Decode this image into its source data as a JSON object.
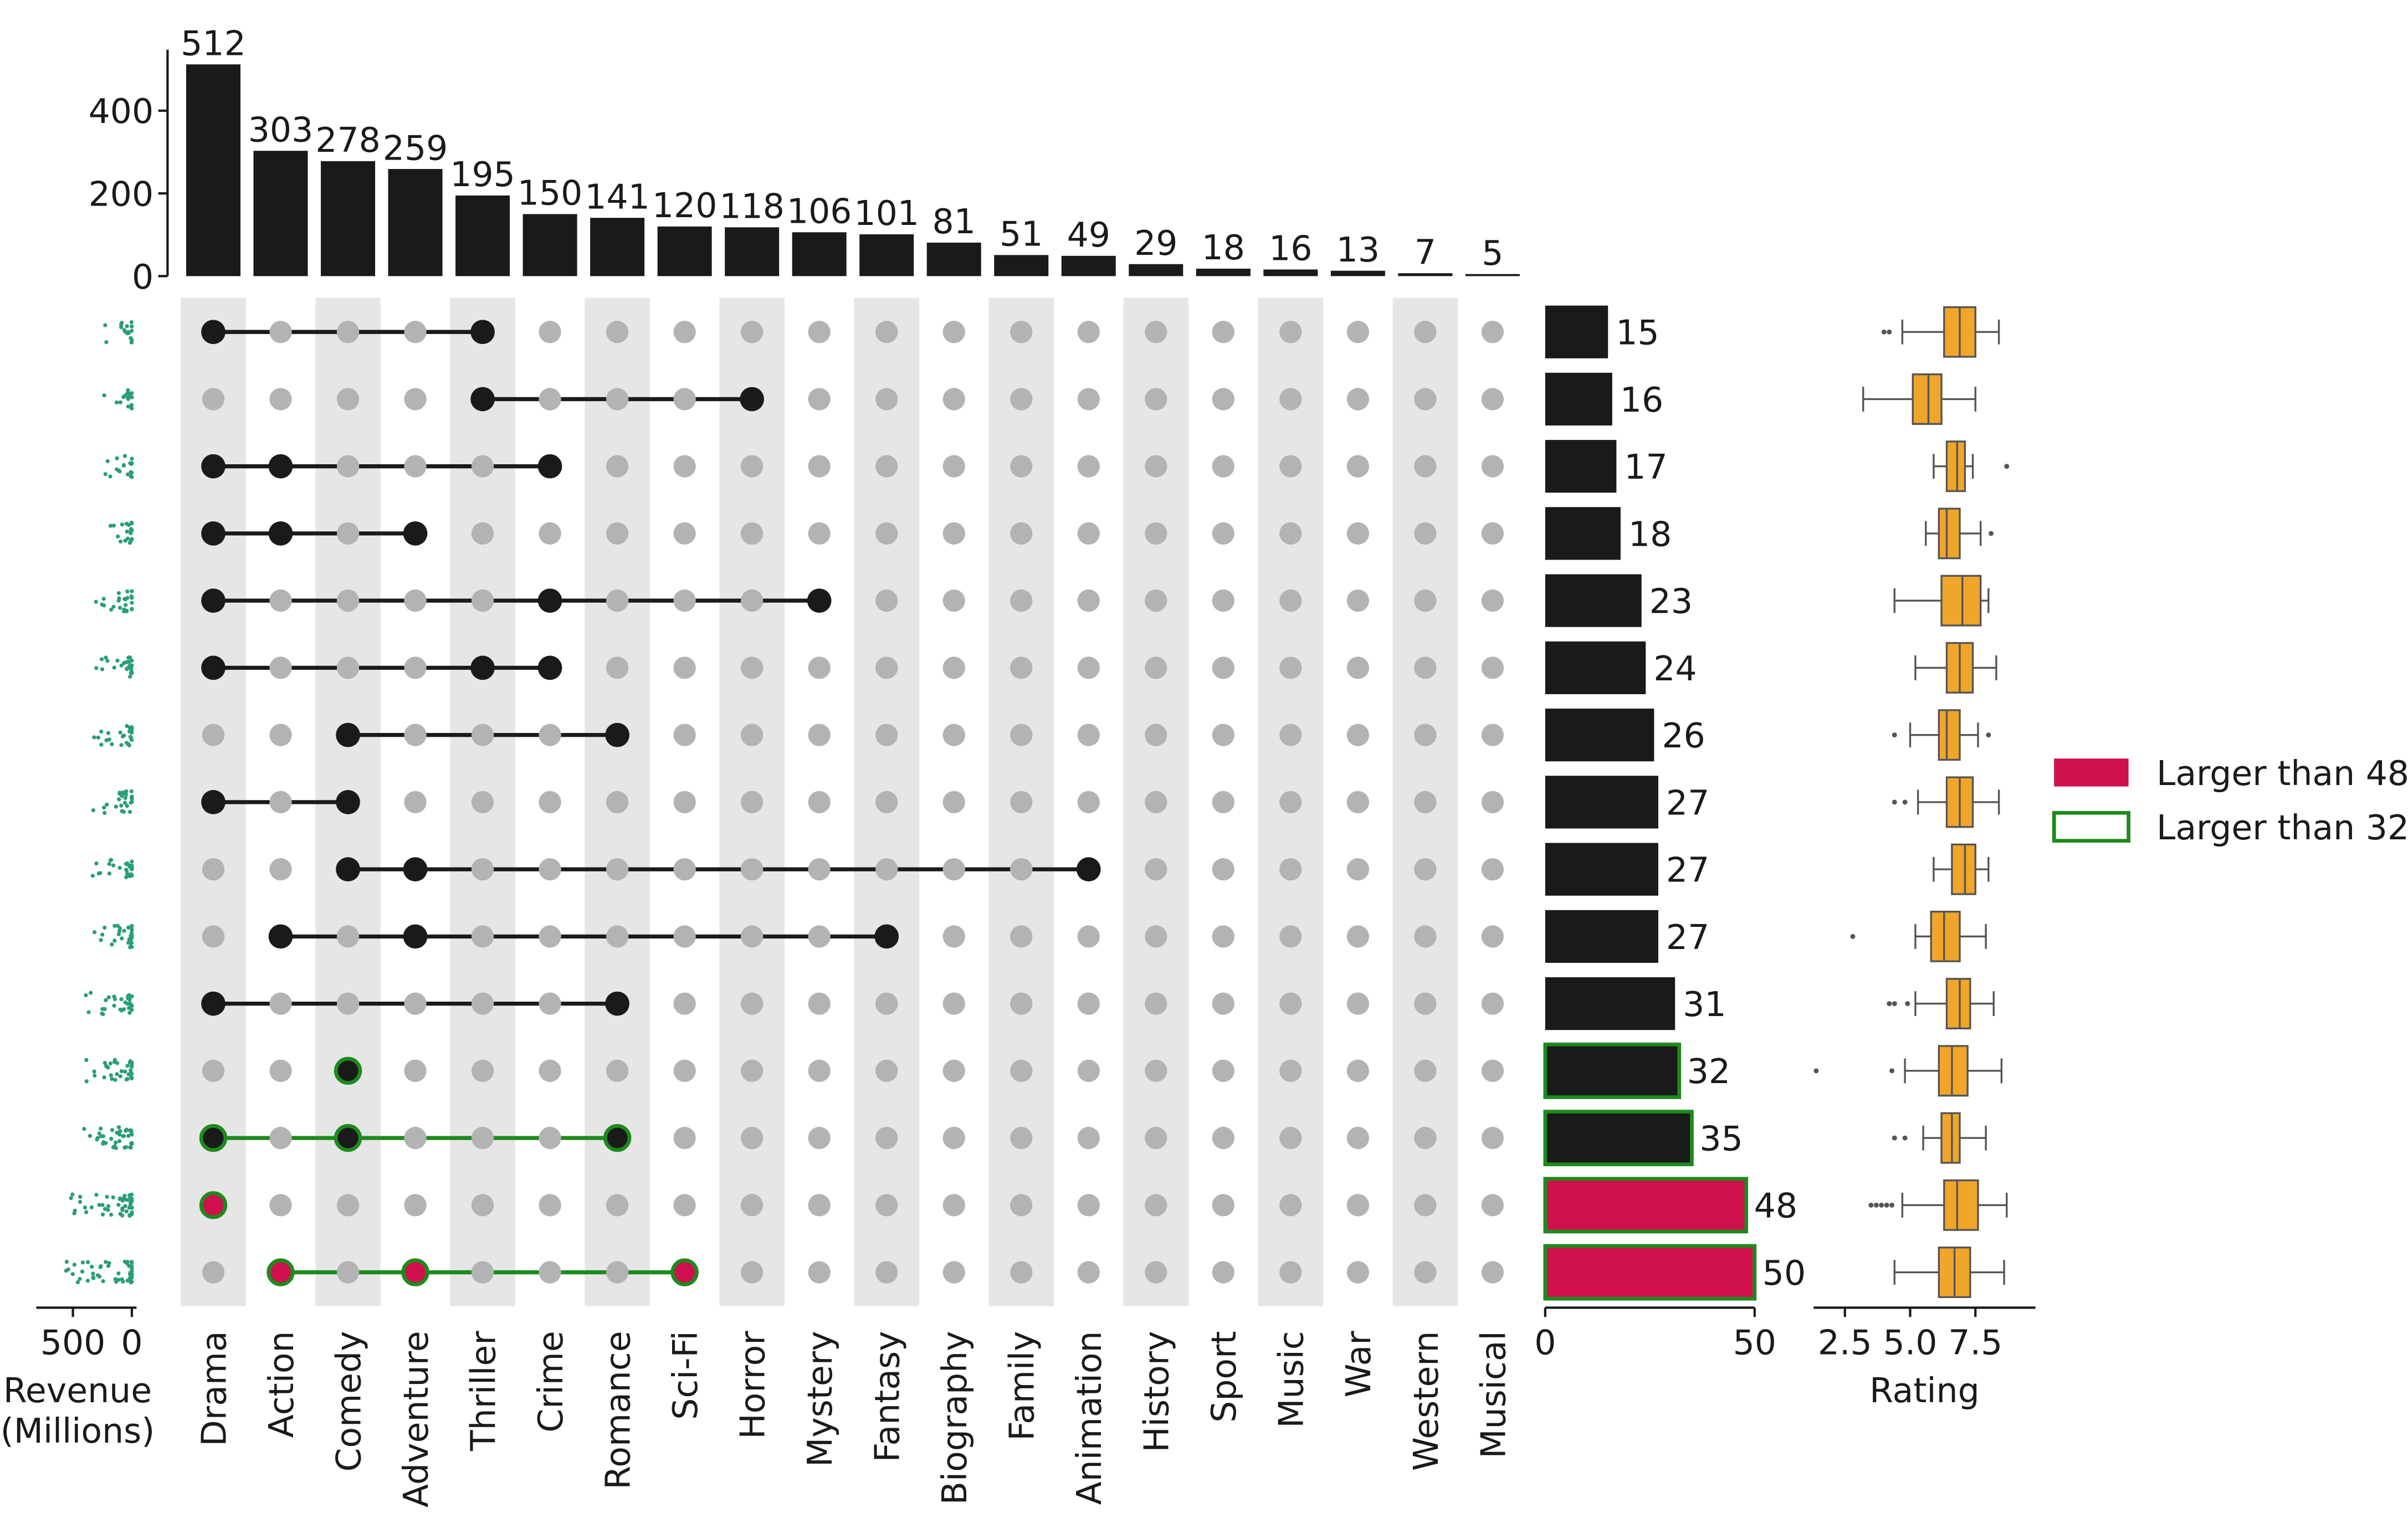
{
  "chart_data": {
    "type": "bar",
    "subtype": "upset-plot",
    "categories": [
      "Drama",
      "Action",
      "Comedy",
      "Adventure",
      "Thriller",
      "Crime",
      "Romance",
      "Sci-Fi",
      "Horror",
      "Mystery",
      "Fantasy",
      "Biography",
      "Family",
      "Animation",
      "History",
      "Sport",
      "Music",
      "War",
      "Western",
      "Musical"
    ],
    "category_totals": [
      512,
      303,
      278,
      259,
      195,
      150,
      141,
      120,
      118,
      106,
      101,
      81,
      51,
      49,
      29,
      18,
      16,
      13,
      7,
      5
    ],
    "category_totals_ticks": [
      0,
      200,
      400
    ],
    "category_totals_ylim": [
      0,
      512
    ],
    "intersections": [
      {
        "members": [
          "Drama",
          "Thriller"
        ],
        "size": 15
      },
      {
        "members": [
          "Thriller",
          "Horror"
        ],
        "size": 16
      },
      {
        "members": [
          "Drama",
          "Action",
          "Crime"
        ],
        "size": 17
      },
      {
        "members": [
          "Drama",
          "Action",
          "Adventure"
        ],
        "size": 18
      },
      {
        "members": [
          "Drama",
          "Crime",
          "Mystery"
        ],
        "size": 23
      },
      {
        "members": [
          "Drama",
          "Thriller",
          "Crime"
        ],
        "size": 24
      },
      {
        "members": [
          "Comedy",
          "Romance"
        ],
        "size": 26
      },
      {
        "members": [
          "Drama",
          "Comedy"
        ],
        "size": 27
      },
      {
        "members": [
          "Comedy",
          "Adventure",
          "Animation"
        ],
        "size": 27
      },
      {
        "members": [
          "Action",
          "Adventure",
          "Fantasy"
        ],
        "size": 27
      },
      {
        "members": [
          "Drama",
          "Romance"
        ],
        "size": 31
      },
      {
        "members": [
          "Comedy"
        ],
        "size": 32,
        "highlight": "outline"
      },
      {
        "members": [
          "Drama",
          "Comedy",
          "Romance"
        ],
        "size": 35,
        "highlight": "outline"
      },
      {
        "members": [
          "Drama"
        ],
        "size": 48,
        "highlight": "fill"
      },
      {
        "members": [
          "Action",
          "Adventure",
          "Sci-Fi"
        ],
        "size": 50,
        "highlight": "fill"
      }
    ],
    "size_axis": {
      "ticks": [
        0,
        50
      ],
      "xlim": [
        0,
        50
      ]
    },
    "rating_box": {
      "xlabel": "Rating",
      "ticks": [
        "2.5",
        "5.0",
        "7.5"
      ],
      "tick_values": [
        2.5,
        5.0,
        7.5
      ],
      "xlim": [
        1.3,
        9.8
      ],
      "boxes": [
        {
          "min": 4.7,
          "q1": 6.3,
          "median": 6.9,
          "q3": 7.5,
          "max": 8.4,
          "outliers": [
            4.0,
            4.2
          ]
        },
        {
          "min": 3.2,
          "q1": 5.1,
          "median": 5.7,
          "q3": 6.2,
          "max": 7.5,
          "outliers": []
        },
        {
          "min": 5.9,
          "q1": 6.4,
          "median": 6.8,
          "q3": 7.1,
          "max": 7.4,
          "outliers": [
            8.7
          ]
        },
        {
          "min": 5.6,
          "q1": 6.1,
          "median": 6.4,
          "q3": 6.9,
          "max": 7.7,
          "outliers": [
            8.1
          ]
        },
        {
          "min": 4.4,
          "q1": 6.2,
          "median": 7.0,
          "q3": 7.7,
          "max": 8.0,
          "outliers": []
        },
        {
          "min": 5.2,
          "q1": 6.4,
          "median": 6.9,
          "q3": 7.4,
          "max": 8.3,
          "outliers": []
        },
        {
          "min": 5.0,
          "q1": 6.1,
          "median": 6.4,
          "q3": 6.9,
          "max": 7.6,
          "outliers": [
            4.4,
            8.0
          ]
        },
        {
          "min": 5.3,
          "q1": 6.4,
          "median": 6.9,
          "q3": 7.4,
          "max": 8.4,
          "outliers": [
            4.4,
            4.8
          ]
        },
        {
          "min": 5.9,
          "q1": 6.6,
          "median": 7.1,
          "q3": 7.5,
          "max": 8.0,
          "outliers": []
        },
        {
          "min": 5.2,
          "q1": 5.8,
          "median": 6.3,
          "q3": 6.9,
          "max": 7.9,
          "outliers": [
            2.8
          ]
        },
        {
          "min": 5.2,
          "q1": 6.4,
          "median": 6.9,
          "q3": 7.3,
          "max": 8.2,
          "outliers": [
            4.2,
            4.4,
            4.9
          ]
        },
        {
          "min": 4.8,
          "q1": 6.1,
          "median": 6.6,
          "q3": 7.2,
          "max": 8.5,
          "outliers": [
            1.4,
            4.3
          ]
        },
        {
          "min": 5.5,
          "q1": 6.2,
          "median": 6.6,
          "q3": 6.9,
          "max": 7.9,
          "outliers": [
            4.4,
            4.8
          ]
        },
        {
          "min": 4.7,
          "q1": 6.3,
          "median": 6.8,
          "q3": 7.6,
          "max": 8.7,
          "outliers": [
            3.5,
            3.7,
            3.9,
            4.1,
            4.3
          ]
        },
        {
          "min": 4.4,
          "q1": 6.1,
          "median": 6.7,
          "q3": 7.3,
          "max": 8.6,
          "outliers": []
        }
      ]
    },
    "revenue_strip": {
      "xlabel_line1": "Revenue",
      "xlabel_line2": "(Millions)",
      "ticks": [
        "500",
        "0"
      ],
      "tick_values": [
        500,
        0
      ],
      "xlim": [
        0,
        850
      ]
    },
    "legend": {
      "placement": "right",
      "entries": [
        {
          "label": "Larger than 48",
          "style": "fill",
          "color": "#d0104c"
        },
        {
          "label": "Larger than 32",
          "style": "outline",
          "color": "#1d8a1d"
        }
      ]
    },
    "colors": {
      "bar": "#1a1a1a",
      "highlight_fill": "#d0104c",
      "highlight_edge": "#1d8a1d",
      "inactive_dot": "#b3b3b3",
      "shade": "#e6e6e6",
      "box": "#f0a52b",
      "strip": "#2a9d7a"
    }
  }
}
